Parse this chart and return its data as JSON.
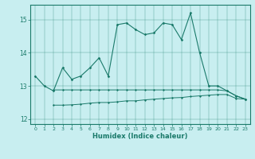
{
  "xlabel": "Humidex (Indice chaleur)",
  "x": [
    0,
    1,
    2,
    3,
    4,
    5,
    6,
    7,
    8,
    9,
    10,
    11,
    12,
    13,
    14,
    15,
    16,
    17,
    18,
    19,
    20,
    21,
    22,
    23
  ],
  "y_main": [
    13.3,
    13.0,
    12.85,
    13.55,
    13.2,
    13.3,
    13.55,
    13.85,
    13.3,
    14.85,
    14.9,
    14.7,
    14.55,
    14.6,
    14.9,
    14.85,
    14.4,
    15.2,
    14.0,
    13.0,
    13.0,
    12.85,
    12.7,
    12.6
  ],
  "y_mid": [
    null,
    null,
    12.88,
    12.88,
    12.88,
    12.88,
    12.88,
    12.88,
    12.88,
    12.88,
    12.88,
    12.88,
    12.88,
    12.88,
    12.88,
    12.88,
    12.88,
    12.88,
    12.88,
    12.88,
    12.88,
    12.85,
    12.7,
    12.6
  ],
  "y_lower": [
    null,
    null,
    12.42,
    12.42,
    12.43,
    12.45,
    12.48,
    12.5,
    12.5,
    12.52,
    12.55,
    12.55,
    12.58,
    12.6,
    12.62,
    12.64,
    12.65,
    12.68,
    12.7,
    12.72,
    12.74,
    12.74,
    12.62,
    12.6
  ],
  "color": "#1a7a6a",
  "bg_color": "#c8eef0",
  "ylim": [
    11.85,
    15.45
  ],
  "xlim": [
    -0.5,
    23.5
  ],
  "yticks": [
    12,
    13,
    14,
    15
  ],
  "xticks": [
    0,
    1,
    2,
    3,
    4,
    5,
    6,
    7,
    8,
    9,
    10,
    11,
    12,
    13,
    14,
    15,
    16,
    17,
    18,
    19,
    20,
    21,
    22,
    23
  ]
}
